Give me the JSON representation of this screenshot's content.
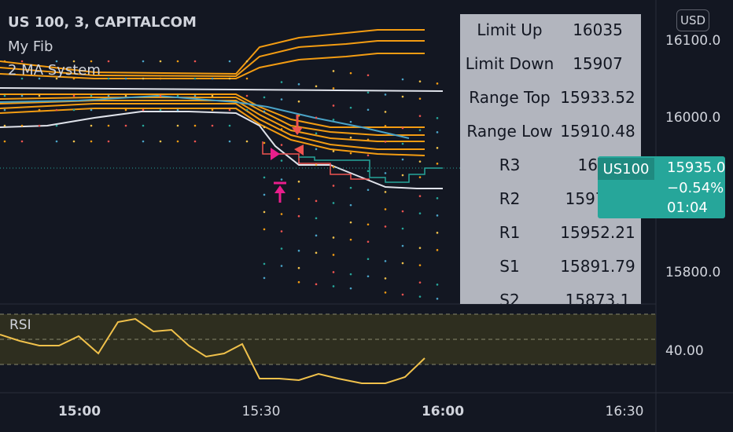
{
  "legend": {
    "symbol_line": "US 100, 3, CAPITALCOM",
    "fib_indicator": "My Fib",
    "ma_indicator": "2 MA System"
  },
  "currency_button": "USD",
  "price_axis": {
    "ticks": [
      {
        "label": "16100.0",
        "value": 16100
      },
      {
        "label": "16000.0",
        "value": 16000
      },
      {
        "label": "15800.0",
        "value": 15800
      }
    ]
  },
  "time_axis": {
    "ticks": [
      {
        "label": "15:00",
        "bold": true
      },
      {
        "label": "15:30",
        "bold": false
      },
      {
        "label": "16:00",
        "bold": true
      },
      {
        "label": "16:30",
        "bold": false
      }
    ]
  },
  "fib_table": {
    "rows": [
      {
        "label": "Limit Up",
        "value": "16035"
      },
      {
        "label": "Limit Down",
        "value": "15907"
      },
      {
        "label": "Range Top",
        "value": "15933.52"
      },
      {
        "label": "Range Low",
        "value": "15910.48"
      },
      {
        "label": "R3",
        "value": "1600"
      },
      {
        "label": "R2",
        "value": "15970.9"
      },
      {
        "label": "R1",
        "value": "15952.21"
      },
      {
        "label": "S1",
        "value": "15891.79"
      },
      {
        "label": "S2",
        "value": "15873.1"
      }
    ]
  },
  "price_label": {
    "symbol": "US100",
    "price": "15935.0",
    "change": "−0.54%",
    "countdown": "01:04"
  },
  "rsi": {
    "label": "RSI",
    "level_label": "40.00"
  },
  "colors": {
    "background": "#131722",
    "orange": "#f39c12",
    "teal": "#26a69a",
    "rsi_line": "#f0c14b",
    "rsi_band": "#3a3a1f",
    "table_bg": "#b2b5be"
  }
}
